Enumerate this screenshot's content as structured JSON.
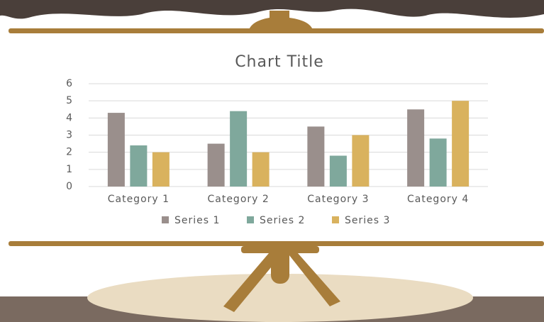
{
  "chart_data": {
    "type": "bar",
    "title": "Chart Title",
    "categories": [
      "Category 1",
      "Category 2",
      "Category 3",
      "Category 4"
    ],
    "series": [
      {
        "name": "Series 1",
        "color": "#9a8f8c",
        "values": [
          4.3,
          2.5,
          3.5,
          4.5
        ]
      },
      {
        "name": "Series 2",
        "color": "#7fa89c",
        "values": [
          2.4,
          4.4,
          1.8,
          2.8
        ]
      },
      {
        "name": "Series 3",
        "color": "#d9b25e",
        "values": [
          2,
          2,
          3,
          5
        ]
      }
    ],
    "ylim": [
      0,
      6
    ],
    "yticks": [
      0,
      1,
      2,
      3,
      4,
      5,
      6
    ],
    "grid": true,
    "legend": "bottom"
  }
}
